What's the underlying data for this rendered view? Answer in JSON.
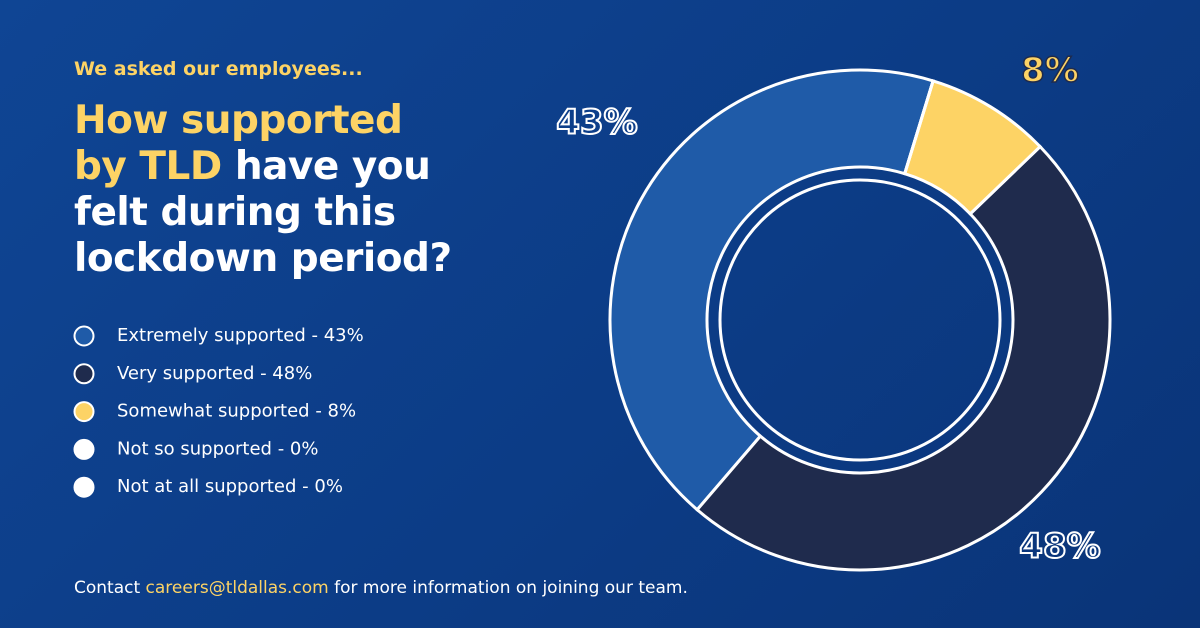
{
  "intro": "We asked our employees...",
  "heading": [
    [
      "How supported"
    ],
    [
      "by TLD",
      " have you"
    ],
    [
      "felt during this"
    ],
    [
      "lockdown period?"
    ]
  ],
  "footer": [
    "Contact ",
    "careers@tldallas.com",
    " for more information on joining our team."
  ],
  "chart_data": {
    "type": "donut",
    "categories": [
      "Extremely supported - 43%",
      "Very supported - 48%",
      "Somewhat supported - 8%",
      "Not so supported - 0%",
      "Not at all supported - 0%"
    ],
    "values": [
      43,
      48,
      8,
      0,
      0
    ],
    "value_labels": [
      "43%",
      "48%",
      "8%",
      null,
      null
    ],
    "colors": [
      "#1f5ba8",
      "#1f2b4d",
      "#fdd365",
      "#ffffff",
      "#ffffff"
    ]
  }
}
